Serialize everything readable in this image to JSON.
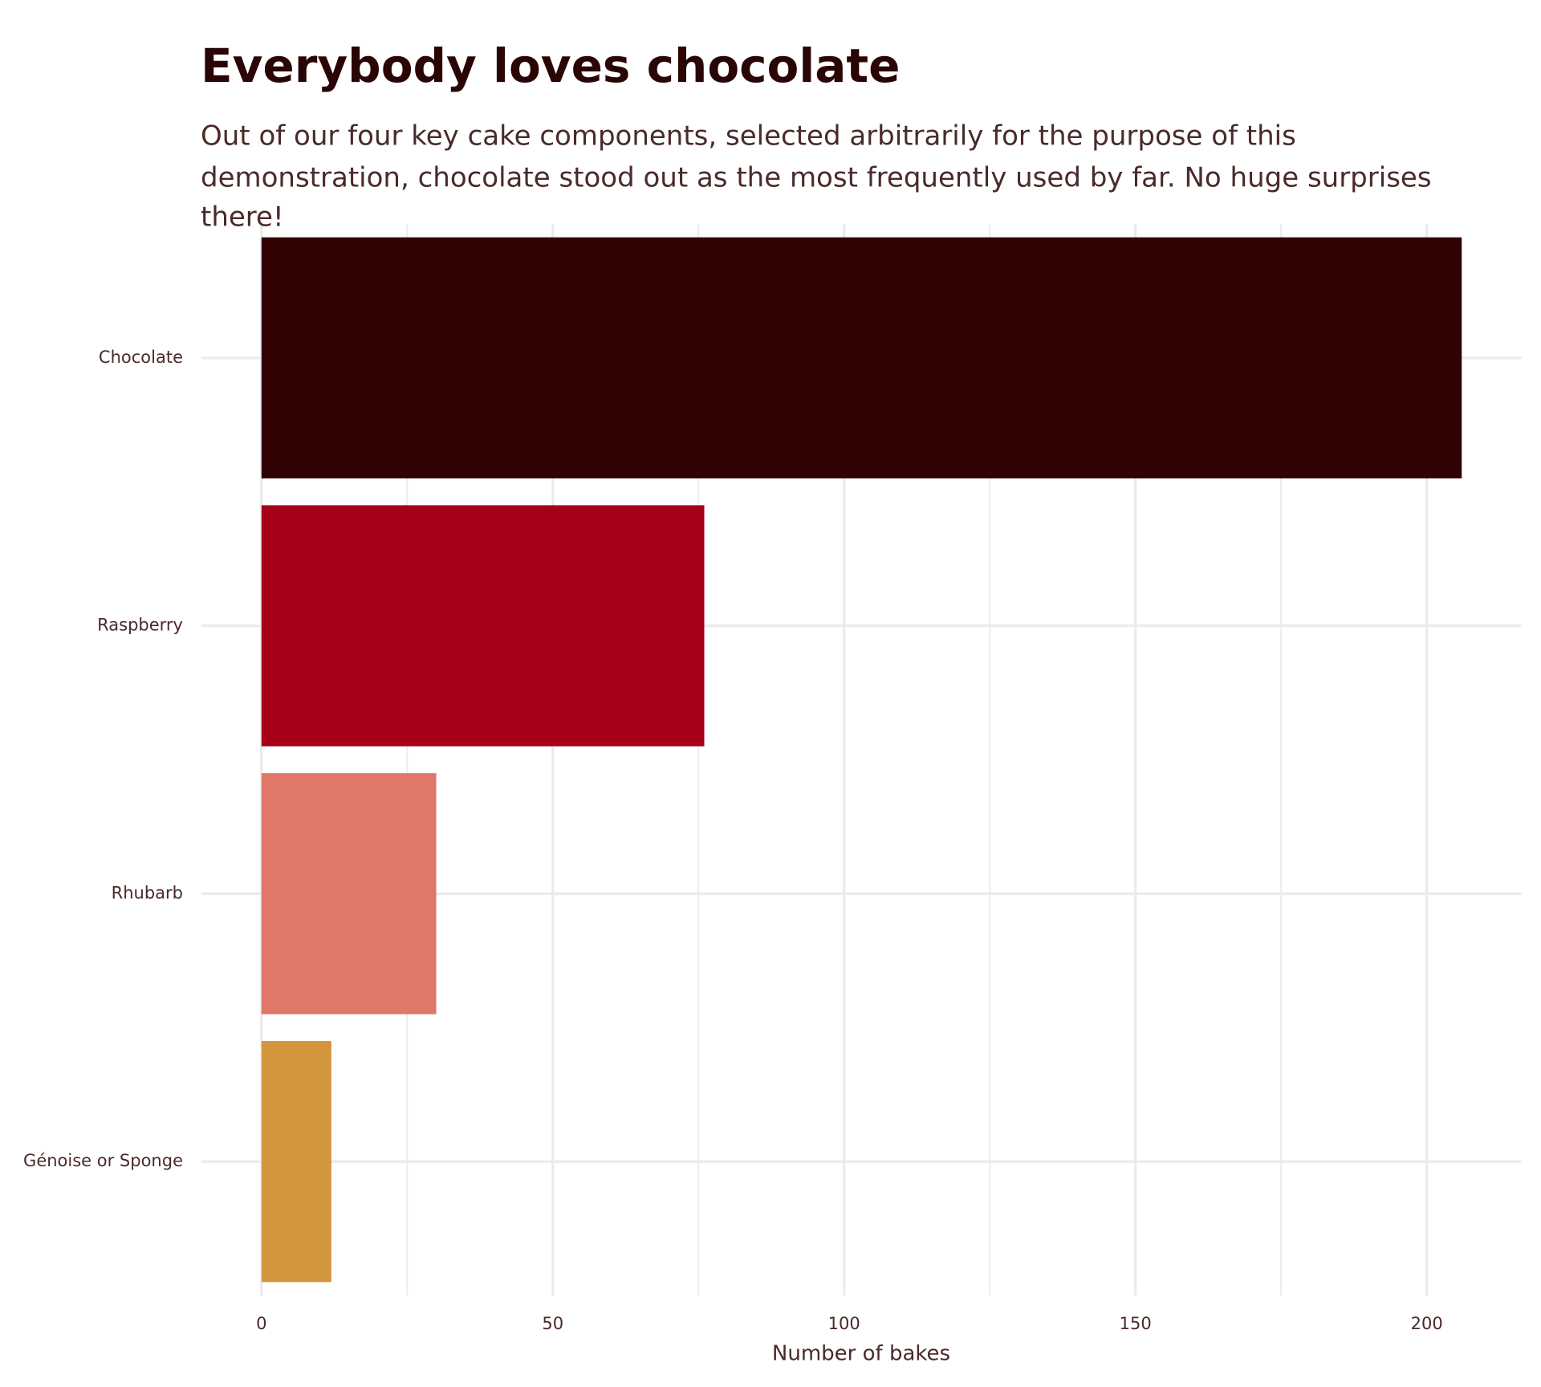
{
  "chart_data": {
    "type": "barh",
    "title": "Everybody loves chocolate",
    "subtitle": [
      "Out of our four key cake components, selected arbitrarily for the purpose of this",
      "demonstration, chocolate stood out as the most frequently used by far. No huge surprises",
      "there!"
    ],
    "categories": [
      "Chocolate",
      "Raspberry",
      "Rhubarb",
      "Génoise or Sponge"
    ],
    "values": [
      206,
      76,
      30,
      12
    ],
    "colors": [
      "#330202",
      "#a6001a",
      "#e07869",
      "#d4963c"
    ],
    "x_label": "Number of bakes",
    "xlim": [
      -10.3,
      216.3
    ],
    "xticks": [
      0,
      50,
      100,
      150,
      200
    ],
    "minor_grid": [
      25,
      75,
      125,
      175
    ],
    "grid": true
  }
}
